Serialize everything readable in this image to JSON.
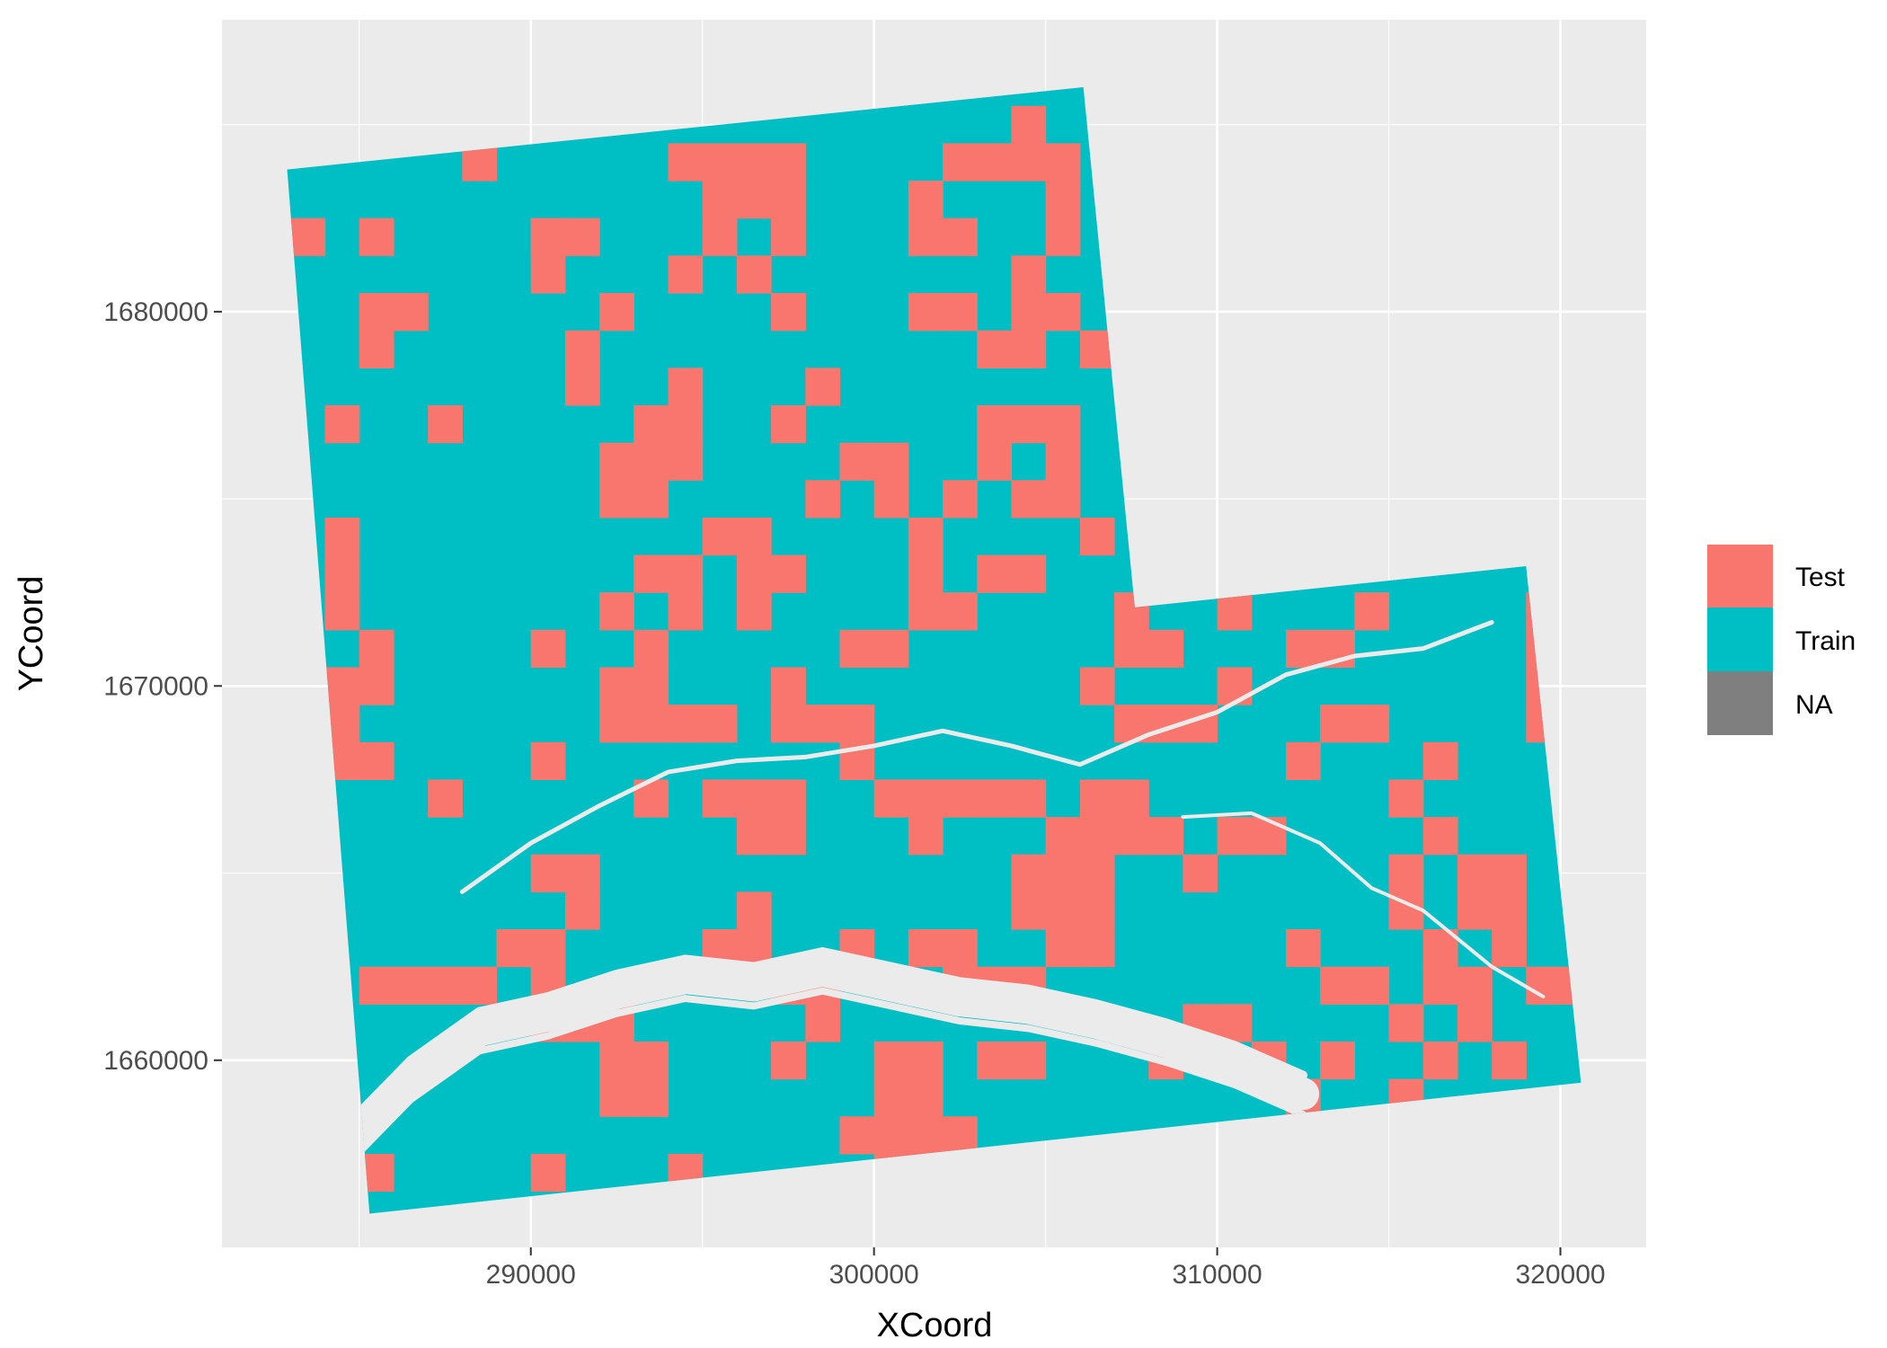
{
  "chart_data": {
    "type": "heatmap",
    "title": "",
    "xlabel": "XCoord",
    "ylabel": "YCoord",
    "xlim": [
      281000,
      322500
    ],
    "ylim": [
      1655000,
      1687800
    ],
    "x_ticks": [
      290000,
      300000,
      310000,
      320000
    ],
    "x_tick_labels": [
      "290000",
      "300000",
      "310000",
      "320000"
    ],
    "y_ticks": [
      1660000,
      1670000,
      1680000
    ],
    "y_tick_labels": [
      "1660000",
      "1670000",
      "1680000"
    ],
    "grid": true,
    "legend_position": "right",
    "legend": [
      {
        "label": "Test",
        "color": "#F8766D"
      },
      {
        "label": "Train",
        "color": "#00BFC4"
      },
      {
        "label": "NA",
        "color": "#7F7F7F"
      }
    ],
    "cell_size": 1000,
    "region_north_xy": [
      [
        282900,
        1683800
      ],
      [
        306100,
        1686000
      ],
      [
        307600,
        1672100
      ],
      [
        319000,
        1673200
      ],
      [
        320600,
        1659400
      ],
      [
        285300,
        1655900
      ]
    ],
    "test_cells": [
      [
        283500,
        1682000
      ],
      [
        285500,
        1682000
      ],
      [
        291500,
        1682000
      ],
      [
        290500,
        1682000
      ],
      [
        295500,
        1683000
      ],
      [
        296500,
        1683000
      ],
      [
        297500,
        1683000
      ],
      [
        295500,
        1684000
      ],
      [
        297500,
        1684000
      ],
      [
        296500,
        1684000
      ],
      [
        294500,
        1684000
      ],
      [
        303500,
        1684000
      ],
      [
        302500,
        1684000
      ],
      [
        304500,
        1684000
      ],
      [
        304500,
        1685000
      ],
      [
        305500,
        1684000
      ],
      [
        288500,
        1684000
      ],
      [
        295500,
        1682000
      ],
      [
        297500,
        1682000
      ],
      [
        294500,
        1681000
      ],
      [
        296500,
        1681000
      ],
      [
        297500,
        1680000
      ],
      [
        290500,
        1681000
      ],
      [
        290500,
        1682000
      ],
      [
        301500,
        1683000
      ],
      [
        301500,
        1682000
      ],
      [
        302500,
        1682000
      ],
      [
        304500,
        1681000
      ],
      [
        304500,
        1680000
      ],
      [
        305500,
        1680000
      ],
      [
        305500,
        1682000
      ],
      [
        305500,
        1683000
      ],
      [
        301500,
        1680000
      ],
      [
        302500,
        1680000
      ],
      [
        285500,
        1679000
      ],
      [
        285500,
        1680000
      ],
      [
        286500,
        1680000
      ],
      [
        291500,
        1679000
      ],
      [
        291500,
        1678000
      ],
      [
        292500,
        1680000
      ],
      [
        303500,
        1679000
      ],
      [
        304500,
        1679000
      ],
      [
        306500,
        1679000
      ],
      [
        305500,
        1677000
      ],
      [
        304500,
        1677000
      ],
      [
        303500,
        1677000
      ],
      [
        298500,
        1678000
      ],
      [
        297500,
        1677000
      ],
      [
        294500,
        1678000
      ],
      [
        294500,
        1677000
      ],
      [
        287500,
        1677000
      ],
      [
        284500,
        1677000
      ],
      [
        293500,
        1676000
      ],
      [
        293500,
        1677000
      ],
      [
        294500,
        1676000
      ],
      [
        293500,
        1675000
      ],
      [
        292500,
        1676000
      ],
      [
        292500,
        1675000
      ],
      [
        295500,
        1674000
      ],
      [
        296500,
        1674000
      ],
      [
        298500,
        1675000
      ],
      [
        300500,
        1675000
      ],
      [
        301500,
        1674000
      ],
      [
        299500,
        1676000
      ],
      [
        300500,
        1676000
      ],
      [
        302500,
        1675000
      ],
      [
        303500,
        1676000
      ],
      [
        304500,
        1675000
      ],
      [
        305500,
        1676000
      ],
      [
        305500,
        1675000
      ],
      [
        306500,
        1674000
      ],
      [
        304500,
        1673000
      ],
      [
        284500,
        1674000
      ],
      [
        284500,
        1673000
      ],
      [
        284500,
        1672000
      ],
      [
        285500,
        1671000
      ],
      [
        285500,
        1670000
      ],
      [
        284500,
        1670000
      ],
      [
        284500,
        1669000
      ],
      [
        285500,
        1668000
      ],
      [
        284500,
        1668000
      ],
      [
        292500,
        1672000
      ],
      [
        293500,
        1673000
      ],
      [
        293500,
        1671000
      ],
      [
        294500,
        1672000
      ],
      [
        294500,
        1673000
      ],
      [
        293500,
        1670000
      ],
      [
        292500,
        1670000
      ],
      [
        290500,
        1671000
      ],
      [
        296500,
        1672000
      ],
      [
        296500,
        1673000
      ],
      [
        297500,
        1673000
      ],
      [
        299500,
        1671000
      ],
      [
        300500,
        1671000
      ],
      [
        301500,
        1672000
      ],
      [
        301500,
        1673000
      ],
      [
        302500,
        1672000
      ],
      [
        303500,
        1673000
      ],
      [
        297500,
        1670000
      ],
      [
        297500,
        1669000
      ],
      [
        298500,
        1669000
      ],
      [
        292500,
        1669000
      ],
      [
        293500,
        1669000
      ],
      [
        294500,
        1669000
      ],
      [
        295500,
        1669000
      ],
      [
        290500,
        1668000
      ],
      [
        293500,
        1667000
      ],
      [
        295500,
        1667000
      ],
      [
        296500,
        1667000
      ],
      [
        297500,
        1667000
      ],
      [
        297500,
        1666000
      ],
      [
        296500,
        1666000
      ],
      [
        299500,
        1669000
      ],
      [
        299500,
        1668000
      ],
      [
        300500,
        1667000
      ],
      [
        301500,
        1667000
      ],
      [
        302500,
        1667000
      ],
      [
        301500,
        1666000
      ],
      [
        303500,
        1667000
      ],
      [
        304500,
        1667000
      ],
      [
        287500,
        1667000
      ],
      [
        290500,
        1665000
      ],
      [
        291500,
        1664000
      ],
      [
        291500,
        1665000
      ],
      [
        289500,
        1663000
      ],
      [
        290500,
        1663000
      ],
      [
        290500,
        1662000
      ],
      [
        288500,
        1662000
      ],
      [
        285500,
        1662000
      ],
      [
        286500,
        1662000
      ],
      [
        287500,
        1662000
      ],
      [
        290500,
        1661000
      ],
      [
        291500,
        1661000
      ],
      [
        292500,
        1661000
      ],
      [
        292500,
        1660000
      ],
      [
        293500,
        1660000
      ],
      [
        293500,
        1659000
      ],
      [
        292500,
        1659000
      ],
      [
        295500,
        1663000
      ],
      [
        296500,
        1664000
      ],
      [
        296500,
        1663000
      ],
      [
        297500,
        1662000
      ],
      [
        298500,
        1662000
      ],
      [
        298500,
        1661000
      ],
      [
        297500,
        1660000
      ],
      [
        299500,
        1663000
      ],
      [
        301500,
        1663000
      ],
      [
        302500,
        1663000
      ],
      [
        302500,
        1662000
      ],
      [
        303500,
        1662000
      ],
      [
        304500,
        1662000
      ],
      [
        305500,
        1663000
      ],
      [
        305500,
        1664000
      ],
      [
        304500,
        1664000
      ],
      [
        306500,
        1663000
      ],
      [
        306500,
        1664000
      ],
      [
        304500,
        1665000
      ],
      [
        305500,
        1665000
      ],
      [
        306500,
        1665000
      ],
      [
        300500,
        1660000
      ],
      [
        300500,
        1659000
      ],
      [
        301500,
        1660000
      ],
      [
        301500,
        1659000
      ],
      [
        299500,
        1658000
      ],
      [
        300500,
        1658000
      ],
      [
        301500,
        1658000
      ],
      [
        302500,
        1658000
      ],
      [
        300500,
        1657000
      ],
      [
        301500,
        1657000
      ],
      [
        294500,
        1657000
      ],
      [
        290500,
        1657000
      ],
      [
        292500,
        1656000
      ],
      [
        293500,
        1656000
      ],
      [
        294500,
        1656000
      ],
      [
        285500,
        1657000
      ],
      [
        303500,
        1660000
      ],
      [
        304500,
        1660000
      ],
      [
        307500,
        1672000
      ],
      [
        307500,
        1671000
      ],
      [
        308500,
        1671000
      ],
      [
        310500,
        1672000
      ],
      [
        312500,
        1671000
      ],
      [
        313500,
        1671000
      ],
      [
        314500,
        1672000
      ],
      [
        306500,
        1670000
      ],
      [
        307500,
        1669000
      ],
      [
        308500,
        1669000
      ],
      [
        309500,
        1669000
      ],
      [
        310500,
        1670000
      ],
      [
        312500,
        1668000
      ],
      [
        313500,
        1669000
      ],
      [
        314500,
        1669000
      ],
      [
        315500,
        1667000
      ],
      [
        316500,
        1668000
      ],
      [
        307500,
        1666000
      ],
      [
        308500,
        1666000
      ],
      [
        309500,
        1665000
      ],
      [
        310500,
        1666000
      ],
      [
        311500,
        1666000
      ],
      [
        306500,
        1666000
      ],
      [
        305500,
        1666000
      ],
      [
        306500,
        1667000
      ],
      [
        307500,
        1667000
      ],
      [
        315500,
        1665000
      ],
      [
        315500,
        1664000
      ],
      [
        316500,
        1666000
      ],
      [
        317500,
        1665000
      ],
      [
        317500,
        1664000
      ],
      [
        318500,
        1664000
      ],
      [
        318500,
        1663000
      ],
      [
        318500,
        1665000
      ],
      [
        319500,
        1672000
      ],
      [
        319500,
        1671000
      ],
      [
        319500,
        1670000
      ],
      [
        319500,
        1669000
      ],
      [
        312500,
        1663000
      ],
      [
        313500,
        1662000
      ],
      [
        314500,
        1662000
      ],
      [
        315500,
        1661000
      ],
      [
        316500,
        1662000
      ],
      [
        317500,
        1662000
      ],
      [
        316500,
        1663000
      ],
      [
        319500,
        1662000
      ],
      [
        320500,
        1662000
      ],
      [
        308500,
        1660000
      ],
      [
        309500,
        1661000
      ],
      [
        310500,
        1661000
      ],
      [
        311500,
        1660000
      ],
      [
        312500,
        1659000
      ],
      [
        313500,
        1660000
      ],
      [
        315500,
        1659000
      ],
      [
        316500,
        1660000
      ],
      [
        317500,
        1661000
      ],
      [
        318500,
        1660000
      ]
    ],
    "river_main_polyline": [
      [
        284900,
        1658000
      ],
      [
        286500,
        1659500
      ],
      [
        288500,
        1660800
      ],
      [
        290500,
        1661200
      ],
      [
        292500,
        1661800
      ],
      [
        294500,
        1662200
      ],
      [
        296500,
        1662000
      ],
      [
        298500,
        1662400
      ],
      [
        300500,
        1662000
      ],
      [
        302500,
        1661600
      ],
      [
        304500,
        1661400
      ],
      [
        306500,
        1661000
      ],
      [
        308500,
        1660500
      ],
      [
        310500,
        1659900
      ],
      [
        312500,
        1659100
      ]
    ],
    "river_secondary_polyline": [
      [
        288000,
        1664500
      ],
      [
        290000,
        1665800
      ],
      [
        292000,
        1666800
      ],
      [
        294000,
        1667700
      ],
      [
        296000,
        1668000
      ],
      [
        298000,
        1668100
      ],
      [
        300000,
        1668400
      ],
      [
        302000,
        1668800
      ],
      [
        304000,
        1668400
      ],
      [
        306000,
        1667900
      ],
      [
        308000,
        1668700
      ],
      [
        310000,
        1669300
      ],
      [
        312000,
        1670300
      ],
      [
        314000,
        1670800
      ],
      [
        316000,
        1671000
      ],
      [
        318000,
        1671700
      ]
    ],
    "river_tertiary_polyline": [
      [
        309000,
        1666500
      ],
      [
        311000,
        1666600
      ],
      [
        313000,
        1665800
      ],
      [
        314500,
        1664600
      ],
      [
        316000,
        1664000
      ],
      [
        318000,
        1662500
      ],
      [
        319500,
        1661700
      ]
    ]
  }
}
